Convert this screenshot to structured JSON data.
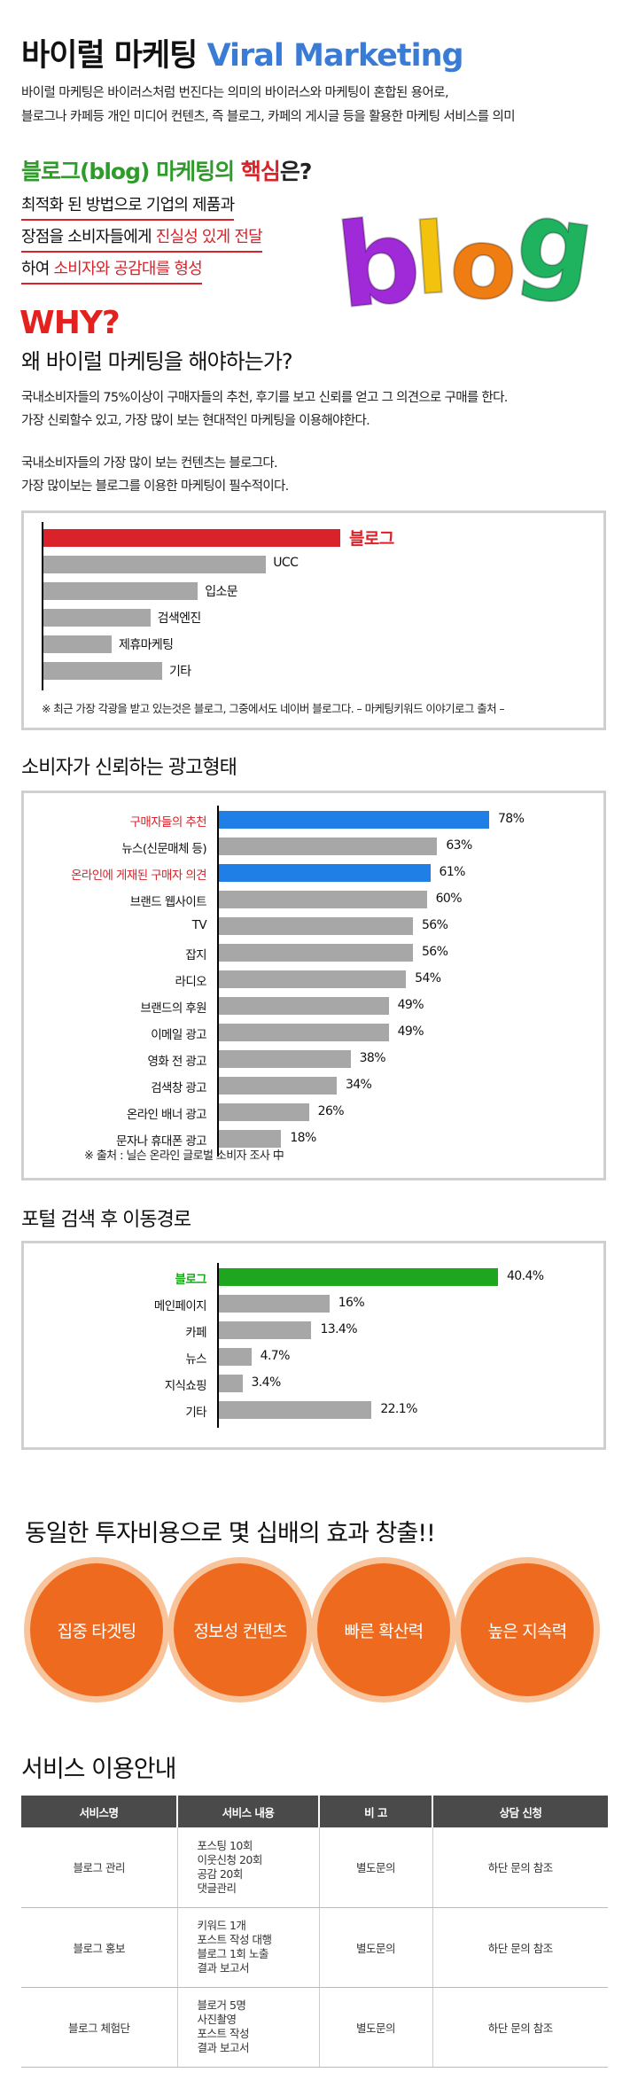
{
  "header": {
    "title_ko": "바이럴 마케팅",
    "title_en": "Viral Marketing",
    "intro_line1": "바이럴 마케팅은 바이러스처럼 번진다는 의미의 바이러스와 마케팅이 혼합된 용어로,",
    "intro_line2": "블로그나 카페등 개인 미디어 컨텐츠, 즉 블로그, 카페의 게시글 등을 활용한 마케팅 서비스를 의미"
  },
  "blog_core": {
    "head_green": "블로그(blog) 마케팅의",
    "head_red": "핵심",
    "head_tail": "은?",
    "line1": "최적화 된 방법으로 기업의 제품과",
    "line2_a": "장점을 소비자들에게",
    "line2_red": "진실성 있게 전달",
    "line3_a": "하여",
    "line3_red": "소비자와 공감대를 형성",
    "art_letters": [
      "b",
      "l",
      "o",
      "g"
    ],
    "art_colors": [
      "#a02ad8",
      "#f2c20f",
      "#f07d12",
      "#1fb360"
    ]
  },
  "why": {
    "headline": "WHY?",
    "subhead": "왜 바이럴 마케팅을 해야하는가?",
    "p1_line1": "국내소비자들의 75%이상이 구매자들의 추천, 후기를 보고 신뢰를 얻고 그 의견으로 구매를 한다.",
    "p1_line2": "가장 신뢰할수 있고, 가장 많이 보는 현대적인 마케팅을 이용해야한다.",
    "p2_line1": "국내소비자들의 가장 많이 보는 컨텐츠는 블로그다.",
    "p2_line2": "가장 많이보는 블로그를 이용한 마케팅이 필수적이다."
  },
  "chart_data": [
    {
      "type": "bar",
      "orientation": "horizontal",
      "categories": [
        "블로그",
        "UCC",
        "입소문",
        "검색엔진",
        "제휴마케팅",
        "기타"
      ],
      "values": [
        100,
        75,
        52,
        36,
        23,
        40
      ],
      "highlight_color": "#d9222a",
      "base_color": "#a7a7a7",
      "note": "※ 최근 가장 각광을 받고 있는것은 블로그, 그중에서도 네이버 블로그다. – 마케팅키워드 이야기로그 출처 –"
    },
    {
      "type": "bar",
      "orientation": "horizontal",
      "title": "소비자가 신뢰하는 광고형태",
      "categories": [
        "구매자들의 추천",
        "뉴스(신문매체 등)",
        "온라인에 게재된 구매자 의견",
        "브랜드 웹사이트",
        "TV",
        "잡지",
        "라디오",
        "브랜드의 후원",
        "이메일 광고",
        "영화 전 광고",
        "검색창 광고",
        "온라인 배너 광고",
        "문자나 휴대폰 광고"
      ],
      "values": [
        78,
        63,
        61,
        60,
        56,
        56,
        54,
        49,
        49,
        38,
        34,
        26,
        18
      ],
      "value_labels": [
        "78%",
        "63%",
        "61%",
        "60%",
        "56%",
        "56%",
        "54%",
        "49%",
        "49%",
        "38%",
        "34%",
        "26%",
        "18%"
      ],
      "highlight": [
        0,
        2
      ],
      "highlight_color": "#1f7fe6",
      "highlight_text_color": "#d9222a",
      "base_color": "#a7a7a7",
      "xlim": [
        0,
        100
      ],
      "note": "※ 출처 : 닐슨 온라인 글로벌 소비자 조사 中"
    },
    {
      "type": "bar",
      "orientation": "horizontal",
      "title": "포털 검색 후 이동경로",
      "categories": [
        "블로그",
        "메인페이지",
        "카페",
        "뉴스",
        "지식쇼핑",
        "기타"
      ],
      "values": [
        40.4,
        16,
        13.4,
        4.7,
        3.4,
        22.1
      ],
      "value_labels": [
        "40.4%",
        "16%",
        "13.4%",
        "4.7%",
        "3.4%",
        "22.1%"
      ],
      "highlight": [
        0
      ],
      "highlight_color": "#1ea61e",
      "base_color": "#a7a7a7",
      "xlim": [
        0,
        100
      ]
    }
  ],
  "effects": {
    "headline": "동일한 투자비용으로 몇 십배의 효과 창출!!",
    "circles": [
      "집중 타겟팅",
      "정보성 컨텐츠",
      "빠른 확산력",
      "높은 지속력"
    ]
  },
  "service": {
    "title": "서비스 이용안내",
    "headers": [
      "서비스명",
      "서비스 내용",
      "비 고",
      "상담 신청"
    ],
    "rows": [
      {
        "name": "블로그 관리",
        "content": [
          "포스팅 10회",
          "이웃신청 20회",
          "공감 20회",
          "댓글관리"
        ],
        "note": "별도문의",
        "consult": "하단 문의 참조"
      },
      {
        "name": "블로그 홍보",
        "content": [
          "키워드 1개",
          "포스트 작성 대행",
          "블로그 1회 노출",
          "결과 보고서"
        ],
        "note": "별도문의",
        "consult": "하단 문의 참조"
      },
      {
        "name": "블로그 체험단",
        "content": [
          "블로거 5명",
          "사진촬영",
          "포스트 작성",
          "결과 보고서"
        ],
        "note": "별도문의",
        "consult": "하단 문의 참조"
      }
    ]
  }
}
